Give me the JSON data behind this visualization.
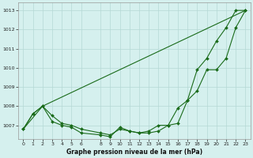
{
  "line_bottom": {
    "x": [
      0,
      1,
      2,
      3,
      4,
      5,
      6,
      8,
      9,
      10,
      11,
      12,
      13,
      14,
      15,
      16,
      17,
      18,
      19,
      20,
      21,
      22,
      23
    ],
    "y": [
      1006.8,
      1007.6,
      1008.0,
      1007.2,
      1007.0,
      1006.9,
      1006.6,
      1006.5,
      1006.4,
      1006.9,
      1006.7,
      1006.6,
      1006.6,
      1006.7,
      1007.0,
      1007.1,
      1008.3,
      1008.8,
      1009.9,
      1009.9,
      1010.5,
      1012.1,
      1013.0
    ]
  },
  "line_top": {
    "x": [
      0,
      2,
      23
    ],
    "y": [
      1006.8,
      1008.0,
      1013.0
    ]
  },
  "line_mid": {
    "x": [
      0,
      1,
      2,
      3,
      4,
      5,
      6,
      8,
      9,
      10,
      11,
      12,
      13,
      14,
      15,
      16,
      17,
      18,
      19,
      20,
      21,
      22,
      23
    ],
    "y": [
      1006.8,
      1007.6,
      1008.0,
      1007.5,
      1007.1,
      1007.0,
      1006.8,
      1006.6,
      1006.5,
      1006.8,
      1006.7,
      1006.6,
      1006.7,
      1007.0,
      1007.0,
      1007.9,
      1008.3,
      1009.9,
      1010.5,
      1011.4,
      1012.1,
      1013.0,
      1013.0
    ]
  },
  "background_color": "#d5f0ee",
  "grid_color": "#b5d9d5",
  "line_color": "#1a6b1a",
  "ylim_min": 1006.3,
  "ylim_max": 1013.4,
  "yticks": [
    1007,
    1008,
    1009,
    1010,
    1011,
    1012,
    1013
  ],
  "xticks": [
    0,
    1,
    2,
    3,
    4,
    5,
    6,
    8,
    9,
    10,
    11,
    12,
    13,
    14,
    15,
    16,
    17,
    18,
    19,
    20,
    21,
    22,
    23
  ],
  "xlabel": "Graphe pression niveau de la mer (hPa)"
}
